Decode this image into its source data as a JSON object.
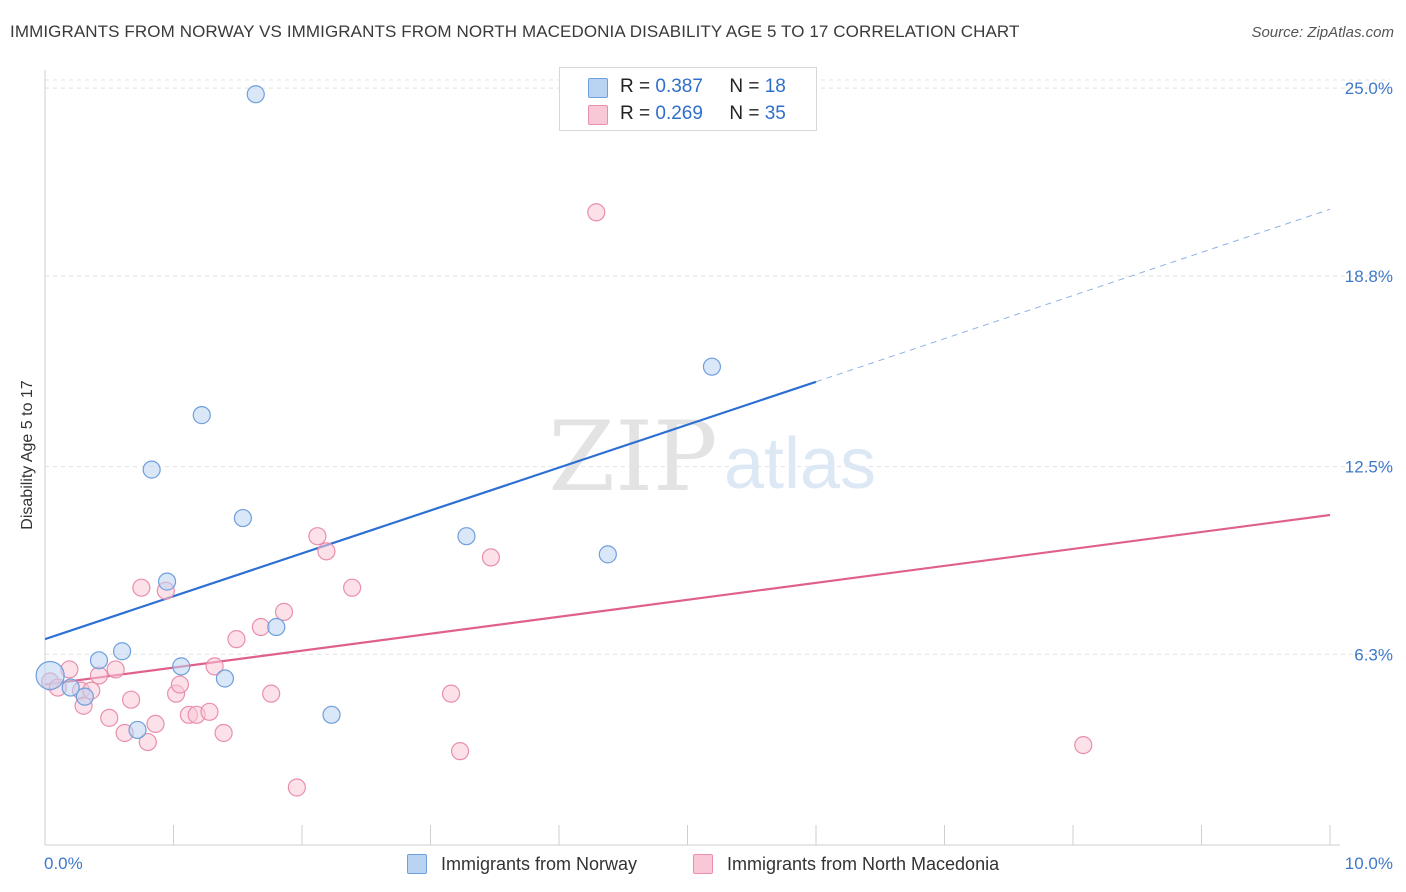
{
  "title": "IMMIGRANTS FROM NORWAY VS IMMIGRANTS FROM NORTH MACEDONIA DISABILITY AGE 5 TO 17 CORRELATION CHART",
  "source": "Source: ZipAtlas.com",
  "watermark": {
    "zip": "ZIP",
    "atlas": "atlas"
  },
  "legend": [
    {
      "r_label": "R =",
      "r_value": "0.387",
      "n_label": "N =",
      "n_value": "18",
      "fill": "#b9d3f3",
      "stroke": "#6f9fdc"
    },
    {
      "r_label": "R =",
      "r_value": "0.269",
      "n_label": "N =",
      "n_value": "35",
      "fill": "#f9c8d7",
      "stroke": "#e98fae"
    }
  ],
  "bottom_legend": [
    {
      "label": "Immigrants from Norway",
      "fill": "#b9d3f3",
      "stroke": "#6f9fdc"
    },
    {
      "label": "Immigrants from North Macedonia",
      "fill": "#f9c8d7",
      "stroke": "#e98fae"
    }
  ],
  "chart_data": {
    "type": "scatter",
    "title": "IMMIGRANTS FROM NORWAY VS IMMIGRANTS FROM NORTH MACEDONIA DISABILITY AGE 5 TO 17 CORRELATION CHART",
    "xlabel": "",
    "ylabel": "Disability Age 5 to 17",
    "xlim": [
      0,
      10
    ],
    "ylim": [
      0,
      25.6
    ],
    "x_tick_labels": [
      "0.0%",
      "10.0%"
    ],
    "y_ticks": [
      6.3,
      12.5,
      18.8,
      25.0
    ],
    "y_tick_labels": [
      "6.3%",
      "12.5%",
      "18.8%",
      "25.0%"
    ],
    "grid": "horizontal dashed",
    "legend_position": "top-center",
    "series": [
      {
        "name": "Immigrants from Norway",
        "color": "#6f9fdc",
        "fill": "#b9d3f3",
        "line_color": "#2d6fd2",
        "points": [
          {
            "x": 0.04,
            "y": 5.6
          },
          {
            "x": 0.2,
            "y": 5.2
          },
          {
            "x": 0.31,
            "y": 4.9
          },
          {
            "x": 0.42,
            "y": 6.1
          },
          {
            "x": 0.6,
            "y": 6.4
          },
          {
            "x": 0.72,
            "y": 3.8
          },
          {
            "x": 0.83,
            "y": 12.4
          },
          {
            "x": 0.95,
            "y": 8.7
          },
          {
            "x": 1.06,
            "y": 5.9
          },
          {
            "x": 1.22,
            "y": 14.2
          },
          {
            "x": 1.4,
            "y": 5.5
          },
          {
            "x": 1.54,
            "y": 10.8
          },
          {
            "x": 1.64,
            "y": 24.8
          },
          {
            "x": 1.8,
            "y": 7.2
          },
          {
            "x": 2.23,
            "y": 4.3
          },
          {
            "x": 3.28,
            "y": 10.2
          },
          {
            "x": 4.38,
            "y": 9.6
          },
          {
            "x": 5.19,
            "y": 15.8
          }
        ],
        "trend": {
          "x0": 0,
          "y0": 6.8,
          "x1": 6.0,
          "y1": 15.3,
          "dashed_to_x": 10.0,
          "dashed_to_y": 21.0
        }
      },
      {
        "name": "Immigrants from North Macedonia",
        "color": "#e98fae",
        "fill": "#f9c8d7",
        "line_color": "#e0608c",
        "points": [
          {
            "x": 0.04,
            "y": 5.4
          },
          {
            "x": 0.1,
            "y": 5.2
          },
          {
            "x": 0.19,
            "y": 5.8
          },
          {
            "x": 0.28,
            "y": 5.1
          },
          {
            "x": 0.3,
            "y": 4.6
          },
          {
            "x": 0.36,
            "y": 5.1
          },
          {
            "x": 0.42,
            "y": 5.6
          },
          {
            "x": 0.5,
            "y": 4.2
          },
          {
            "x": 0.55,
            "y": 5.8
          },
          {
            "x": 0.62,
            "y": 3.7
          },
          {
            "x": 0.67,
            "y": 4.8
          },
          {
            "x": 0.75,
            "y": 8.5
          },
          {
            "x": 0.8,
            "y": 3.4
          },
          {
            "x": 0.86,
            "y": 4.0
          },
          {
            "x": 0.94,
            "y": 8.4
          },
          {
            "x": 1.02,
            "y": 5.0
          },
          {
            "x": 1.05,
            "y": 5.3
          },
          {
            "x": 1.12,
            "y": 4.3
          },
          {
            "x": 1.18,
            "y": 4.3
          },
          {
            "x": 1.28,
            "y": 4.4
          },
          {
            "x": 1.32,
            "y": 5.9
          },
          {
            "x": 1.39,
            "y": 3.7
          },
          {
            "x": 1.49,
            "y": 6.8
          },
          {
            "x": 1.68,
            "y": 7.2
          },
          {
            "x": 1.76,
            "y": 5.0
          },
          {
            "x": 1.86,
            "y": 7.7
          },
          {
            "x": 1.96,
            "y": 1.9
          },
          {
            "x": 2.12,
            "y": 10.2
          },
          {
            "x": 2.19,
            "y": 9.7
          },
          {
            "x": 2.39,
            "y": 8.5
          },
          {
            "x": 3.16,
            "y": 5.0
          },
          {
            "x": 3.23,
            "y": 3.1
          },
          {
            "x": 3.47,
            "y": 9.5
          },
          {
            "x": 4.29,
            "y": 20.9
          },
          {
            "x": 8.08,
            "y": 3.3
          }
        ],
        "trend": {
          "x0": 0,
          "y0": 5.3,
          "x1": 10.0,
          "y1": 10.9
        }
      }
    ]
  }
}
